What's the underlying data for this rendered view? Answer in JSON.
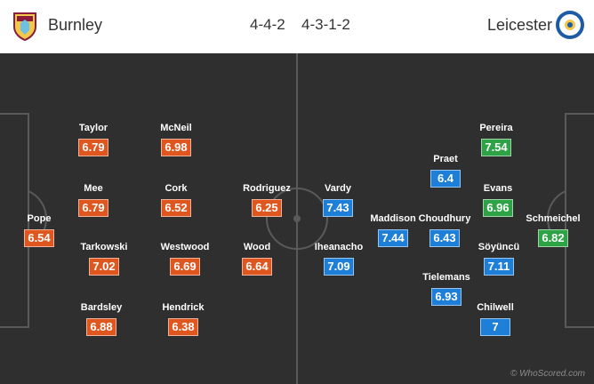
{
  "header": {
    "home_team": "Burnley",
    "home_formation": "4-4-2",
    "away_formation": "4-3-1-2",
    "away_team": "Leicester",
    "home_crest_icon": "burnley-crest-icon",
    "away_crest_icon": "leicester-crest-icon"
  },
  "colors": {
    "pitch": "#2f2f2f",
    "lines": "#5a5a5a",
    "rating_low": "#e0561f",
    "rating_mid": "#1e7fd8",
    "rating_high": "#2ea346"
  },
  "home_players": [
    {
      "name": "Taylor",
      "rating": "6.79"
    },
    {
      "name": "McNeil",
      "rating": "6.98"
    },
    {
      "name": "Mee",
      "rating": "6.79"
    },
    {
      "name": "Cork",
      "rating": "6.52"
    },
    {
      "name": "Rodriguez",
      "rating": "6.25"
    },
    {
      "name": "Pope",
      "rating": "6.54"
    },
    {
      "name": "Tarkowski",
      "rating": "7.02"
    },
    {
      "name": "Westwood",
      "rating": "6.69"
    },
    {
      "name": "Wood",
      "rating": "6.64"
    },
    {
      "name": "Bardsley",
      "rating": "6.88"
    },
    {
      "name": "Hendrick",
      "rating": "6.38"
    }
  ],
  "away_players": [
    {
      "name": "Pereira",
      "rating": "7.54"
    },
    {
      "name": "Praet",
      "rating": "6.4"
    },
    {
      "name": "Vardy",
      "rating": "7.43"
    },
    {
      "name": "Evans",
      "rating": "6.96"
    },
    {
      "name": "Maddison",
      "rating": "7.44"
    },
    {
      "name": "Choudhury",
      "rating": "6.43"
    },
    {
      "name": "Schmeichel",
      "rating": "6.82"
    },
    {
      "name": "Iheanacho",
      "rating": "7.09"
    },
    {
      "name": "Söyüncü",
      "rating": "7.11"
    },
    {
      "name": "Tielemans",
      "rating": "6.93"
    },
    {
      "name": "Chilwell",
      "rating": "7"
    }
  ],
  "watermark": "© WhoScored.com"
}
